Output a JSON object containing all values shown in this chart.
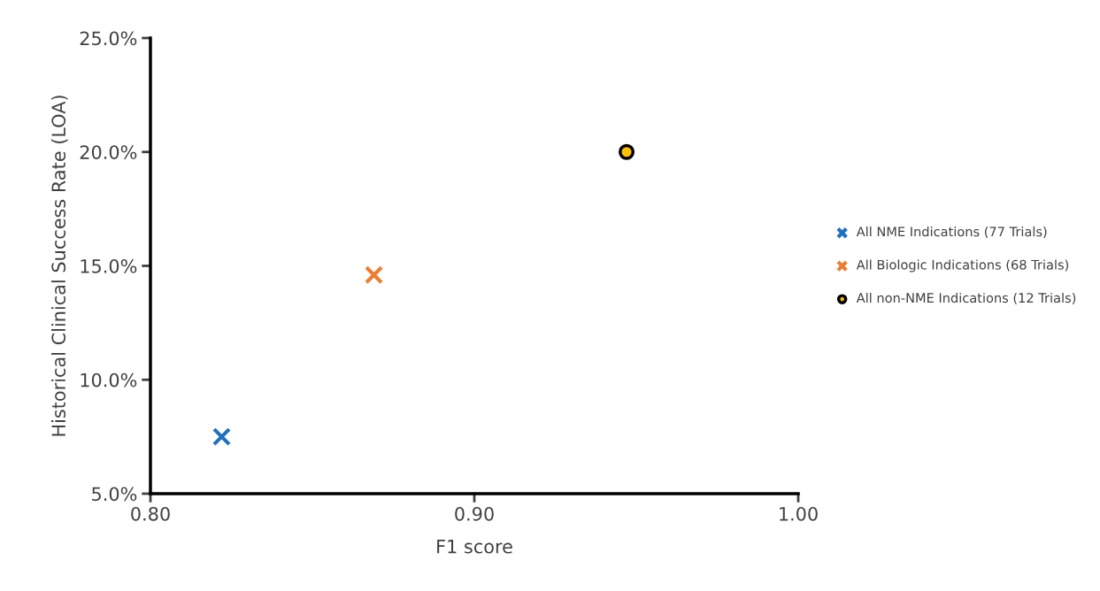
{
  "chart_data": {
    "type": "scatter",
    "xlabel": "F1 score",
    "ylabel": "Historical Clinical Success Rate (LOA)",
    "series": [
      {
        "name": "All NME Indications (77 Trials)",
        "color": "#1f70c1",
        "marker": "cross",
        "x": [
          0.822
        ],
        "values": [
          7.5
        ]
      },
      {
        "name": "All Biologic Indications (68 Trials)",
        "color": "#ed7d31",
        "marker": "cross",
        "x": [
          0.869
        ],
        "values": [
          14.6
        ]
      },
      {
        "name": "All non-NME Indications (12 Trials)",
        "color": "#ffc000",
        "marker": "circle",
        "x": [
          0.947
        ],
        "values": [
          20.0
        ]
      }
    ],
    "xlim": [
      0.8,
      1.0
    ],
    "xticks": [
      {
        "value": 0.8,
        "label": "0.80"
      },
      {
        "value": 0.9,
        "label": "0.90"
      },
      {
        "value": 1.0,
        "label": "1.00"
      }
    ],
    "ylim": [
      5,
      25
    ],
    "yticks": [
      {
        "value": 5,
        "label": "5.0%"
      },
      {
        "value": 10,
        "label": "10.0%"
      },
      {
        "value": 15,
        "label": "15.0%"
      },
      {
        "value": 20,
        "label": "20.0%"
      },
      {
        "value": 25,
        "label": "25.0%"
      }
    ],
    "grid": false,
    "legend": "right"
  }
}
